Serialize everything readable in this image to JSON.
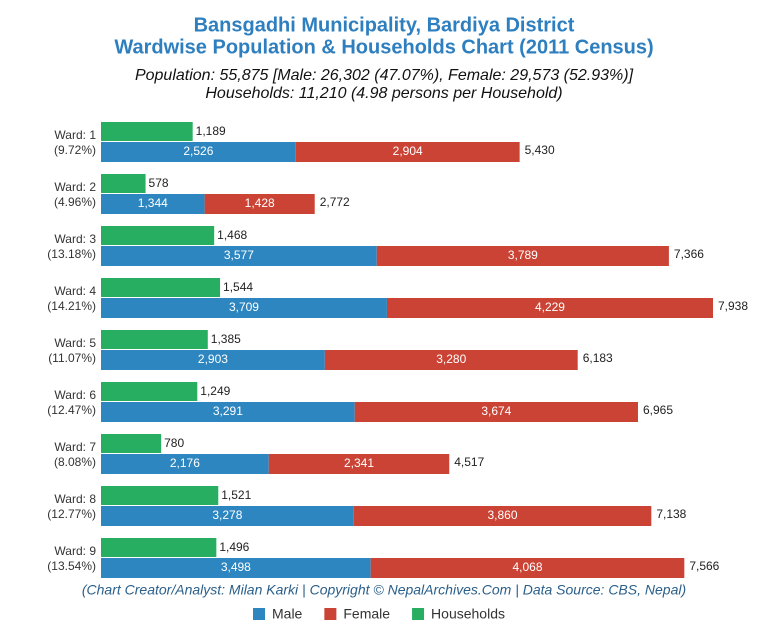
{
  "chart_data": {
    "type": "stacked-barh",
    "title": [
      "Bansgadhi Municipality, Bardiya District",
      "Wardwise Population & Households Chart (2011 Census)"
    ],
    "subtitle": [
      "Population: 55,875 [Male: 26,302 (47.07%), Female: 29,573 (52.93%)]",
      "Households: 11,210 (4.98 persons per Household)"
    ],
    "source": "(Chart Creator/Analyst: Milan Karki | Copyright © NepalArchives.Com | Data Source: CBS, Nepal)",
    "categories": [
      "Ward: 1",
      "Ward: 2",
      "Ward: 3",
      "Ward: 4",
      "Ward: 5",
      "Ward: 6",
      "Ward: 7",
      "Ward: 8",
      "Ward: 9"
    ],
    "category_shares": [
      "(9.72%)",
      "(4.96%)",
      "(13.18%)",
      "(14.21%)",
      "(11.07%)",
      "(12.47%)",
      "(8.08%)",
      "(12.77%)",
      "(13.54%)"
    ],
    "series": [
      {
        "name": "Male",
        "color": "#2e86c1",
        "stack": "population",
        "values": [
          2526,
          1344,
          3577,
          3709,
          2903,
          3291,
          2176,
          3278,
          3498
        ],
        "value_labels": [
          "2,526",
          "1,344",
          "3,577",
          "3,709",
          "2,903",
          "3,291",
          "2,176",
          "3,278",
          "3,498"
        ]
      },
      {
        "name": "Female",
        "color": "#cb4335",
        "stack": "population",
        "values": [
          2904,
          1428,
          3789,
          4229,
          3280,
          3674,
          2341,
          3860,
          4068
        ],
        "value_labels": [
          "2,904",
          "1,428",
          "3,789",
          "4,229",
          "3,280",
          "3,674",
          "2,341",
          "3,860",
          "4,068"
        ]
      },
      {
        "name": "Households",
        "color": "#27ae60",
        "stack": "households",
        "values": [
          1189,
          578,
          1468,
          1544,
          1385,
          1249,
          780,
          1521,
          1496
        ],
        "value_labels": [
          "1,189",
          "578",
          "1,468",
          "1,544",
          "1,385",
          "1,249",
          "780",
          "1,521",
          "1,496"
        ]
      }
    ],
    "totals": {
      "values": [
        5430,
        2772,
        7366,
        7938,
        6183,
        6965,
        4517,
        7138,
        7566
      ],
      "value_labels": [
        "5,430",
        "2,772",
        "7,366",
        "7,938",
        "6,183",
        "6,965",
        "4,517",
        "7,138",
        "7,566"
      ]
    }
  }
}
